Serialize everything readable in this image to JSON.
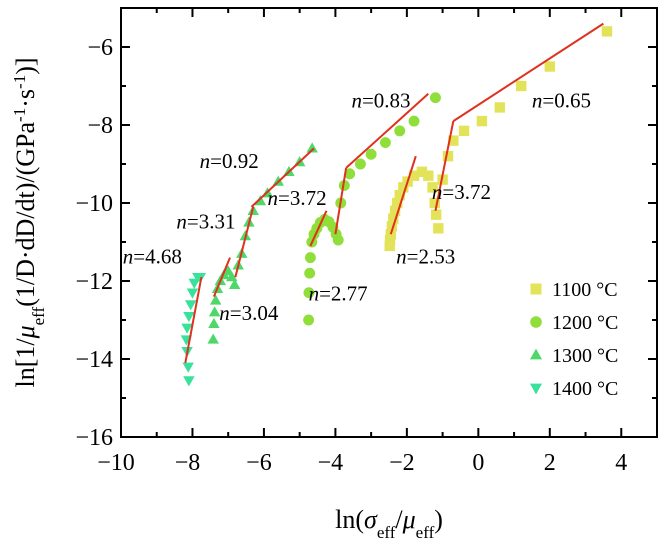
{
  "chart_data": {
    "type": "scatter",
    "xlabel": "ln(σeff/μeff)",
    "ylabel": "ln[1/μeff(1/D·dD/dt)/(GPa-1·s-1)]",
    "xlim": [
      -10,
      5
    ],
    "ylim": [
      -16,
      -5
    ],
    "x_ticks": [
      -10,
      -8,
      -6,
      -4,
      -2,
      0,
      2,
      4
    ],
    "y_ticks": [
      -16,
      -14,
      -12,
      -10,
      -8,
      -6
    ],
    "legend_position": "bottom-right",
    "series": [
      {
        "name": "1100 °C",
        "marker": "square",
        "color": "#e3e35a",
        "points": [
          [
            -2.48,
            -11.1
          ],
          [
            -2.47,
            -10.95
          ],
          [
            -2.45,
            -10.8
          ],
          [
            -2.42,
            -10.6
          ],
          [
            -2.38,
            -10.4
          ],
          [
            -2.33,
            -10.2
          ],
          [
            -2.27,
            -10.0
          ],
          [
            -2.2,
            -9.8
          ],
          [
            -2.1,
            -9.6
          ],
          [
            -1.98,
            -9.45
          ],
          [
            -1.8,
            -9.3
          ],
          [
            -1.58,
            -9.2
          ],
          [
            -1.4,
            -9.3
          ],
          [
            -1.28,
            -9.6
          ],
          [
            -1.22,
            -10.0
          ],
          [
            -1.18,
            -10.3
          ],
          [
            -1.12,
            -10.65
          ],
          [
            -1.0,
            -9.4
          ],
          [
            -0.85,
            -8.8
          ],
          [
            -0.7,
            -8.4
          ],
          [
            -0.4,
            -8.15
          ],
          [
            0.1,
            -7.9
          ],
          [
            0.6,
            -7.55
          ],
          [
            1.2,
            -7.0
          ],
          [
            2.0,
            -6.5
          ],
          [
            3.6,
            -5.6
          ]
        ]
      },
      {
        "name": "1200 °C",
        "marker": "circle",
        "color": "#8fde3a",
        "points": [
          [
            -4.75,
            -13.0
          ],
          [
            -4.74,
            -12.3
          ],
          [
            -4.72,
            -11.8
          ],
          [
            -4.7,
            -11.4
          ],
          [
            -4.66,
            -11.0
          ],
          [
            -4.6,
            -10.8
          ],
          [
            -4.52,
            -10.65
          ],
          [
            -4.42,
            -10.5
          ],
          [
            -4.3,
            -10.42
          ],
          [
            -4.18,
            -10.48
          ],
          [
            -4.07,
            -10.62
          ],
          [
            -3.98,
            -10.8
          ],
          [
            -3.92,
            -10.95
          ],
          [
            -3.85,
            -10.0
          ],
          [
            -3.75,
            -9.55
          ],
          [
            -3.6,
            -9.25
          ],
          [
            -3.3,
            -9.0
          ],
          [
            -3.0,
            -8.75
          ],
          [
            -2.6,
            -8.45
          ],
          [
            -2.2,
            -8.15
          ],
          [
            -1.8,
            -7.9
          ],
          [
            -1.2,
            -7.3
          ]
        ]
      },
      {
        "name": "1300 °C",
        "marker": "triangle-up",
        "color": "#4ed86a",
        "points": [
          [
            -7.42,
            -13.5
          ],
          [
            -7.4,
            -13.1
          ],
          [
            -7.38,
            -12.8
          ],
          [
            -7.35,
            -12.5
          ],
          [
            -7.3,
            -12.2
          ],
          [
            -7.22,
            -12.0
          ],
          [
            -7.12,
            -11.85
          ],
          [
            -7.0,
            -11.75
          ],
          [
            -6.9,
            -11.9
          ],
          [
            -6.82,
            -12.1
          ],
          [
            -6.72,
            -11.6
          ],
          [
            -6.62,
            -11.3
          ],
          [
            -6.52,
            -10.85
          ],
          [
            -6.42,
            -10.5
          ],
          [
            -6.3,
            -10.2
          ],
          [
            -6.1,
            -9.95
          ],
          [
            -5.9,
            -9.75
          ],
          [
            -5.6,
            -9.45
          ],
          [
            -5.3,
            -9.2
          ],
          [
            -5.0,
            -8.95
          ],
          [
            -4.65,
            -8.6
          ]
        ]
      },
      {
        "name": "1400 °C",
        "marker": "triangle-down",
        "color": "#38e29a",
        "points": [
          [
            -8.1,
            -14.55
          ],
          [
            -8.12,
            -14.2
          ],
          [
            -8.15,
            -13.8
          ],
          [
            -8.17,
            -13.5
          ],
          [
            -8.15,
            -13.2
          ],
          [
            -8.1,
            -12.9
          ],
          [
            -8.05,
            -12.6
          ],
          [
            -8.0,
            -12.3
          ],
          [
            -7.95,
            -12.05
          ],
          [
            -7.85,
            -11.9
          ],
          [
            -7.78,
            -11.9
          ]
        ]
      }
    ],
    "fit_lines": [
      {
        "x": [
          -8.2,
          -7.75
        ],
        "y": [
          -14.1,
          -11.9
        ]
      },
      {
        "x": [
          -7.4,
          -6.95
        ],
        "y": [
          -12.4,
          -11.4
        ]
      },
      {
        "x": [
          -6.8,
          -6.3
        ],
        "y": [
          -11.9,
          -10.1
        ]
      },
      {
        "x": [
          -6.35,
          -4.6
        ],
        "y": [
          -10.1,
          -8.6
        ]
      },
      {
        "x": [
          -4.7,
          -4.25
        ],
        "y": [
          -11.1,
          -10.2
        ]
      },
      {
        "x": [
          -4.0,
          -3.7
        ],
        "y": [
          -10.8,
          -9.1
        ]
      },
      {
        "x": [
          -3.7,
          -1.4
        ],
        "y": [
          -9.1,
          -7.2
        ]
      },
      {
        "x": [
          -2.45,
          -1.75
        ],
        "y": [
          -10.8,
          -8.8
        ]
      },
      {
        "x": [
          -1.2,
          -0.7
        ],
        "y": [
          -10.2,
          -7.9
        ]
      },
      {
        "x": [
          -0.7,
          3.5
        ],
        "y": [
          -7.9,
          -5.4
        ]
      }
    ],
    "annotations": [
      {
        "text": "0.65",
        "x": 1.5,
        "y": -7.55
      },
      {
        "text": "0.83",
        "x": -3.55,
        "y": -7.55
      },
      {
        "text": "0.92",
        "x": -7.8,
        "y": -9.1
      },
      {
        "text": "3.72",
        "x": -5.9,
        "y": -10.05
      },
      {
        "text": "3.72",
        "x": -1.3,
        "y": -9.9
      },
      {
        "text": "3.31",
        "x": -8.45,
        "y": -10.65
      },
      {
        "text": "4.68",
        "x": -9.95,
        "y": -11.55
      },
      {
        "text": "2.53",
        "x": -2.3,
        "y": -11.55
      },
      {
        "text": "2.77",
        "x": -4.75,
        "y": -12.5
      },
      {
        "text": "3.04",
        "x": -7.25,
        "y": -13.0
      }
    ]
  }
}
